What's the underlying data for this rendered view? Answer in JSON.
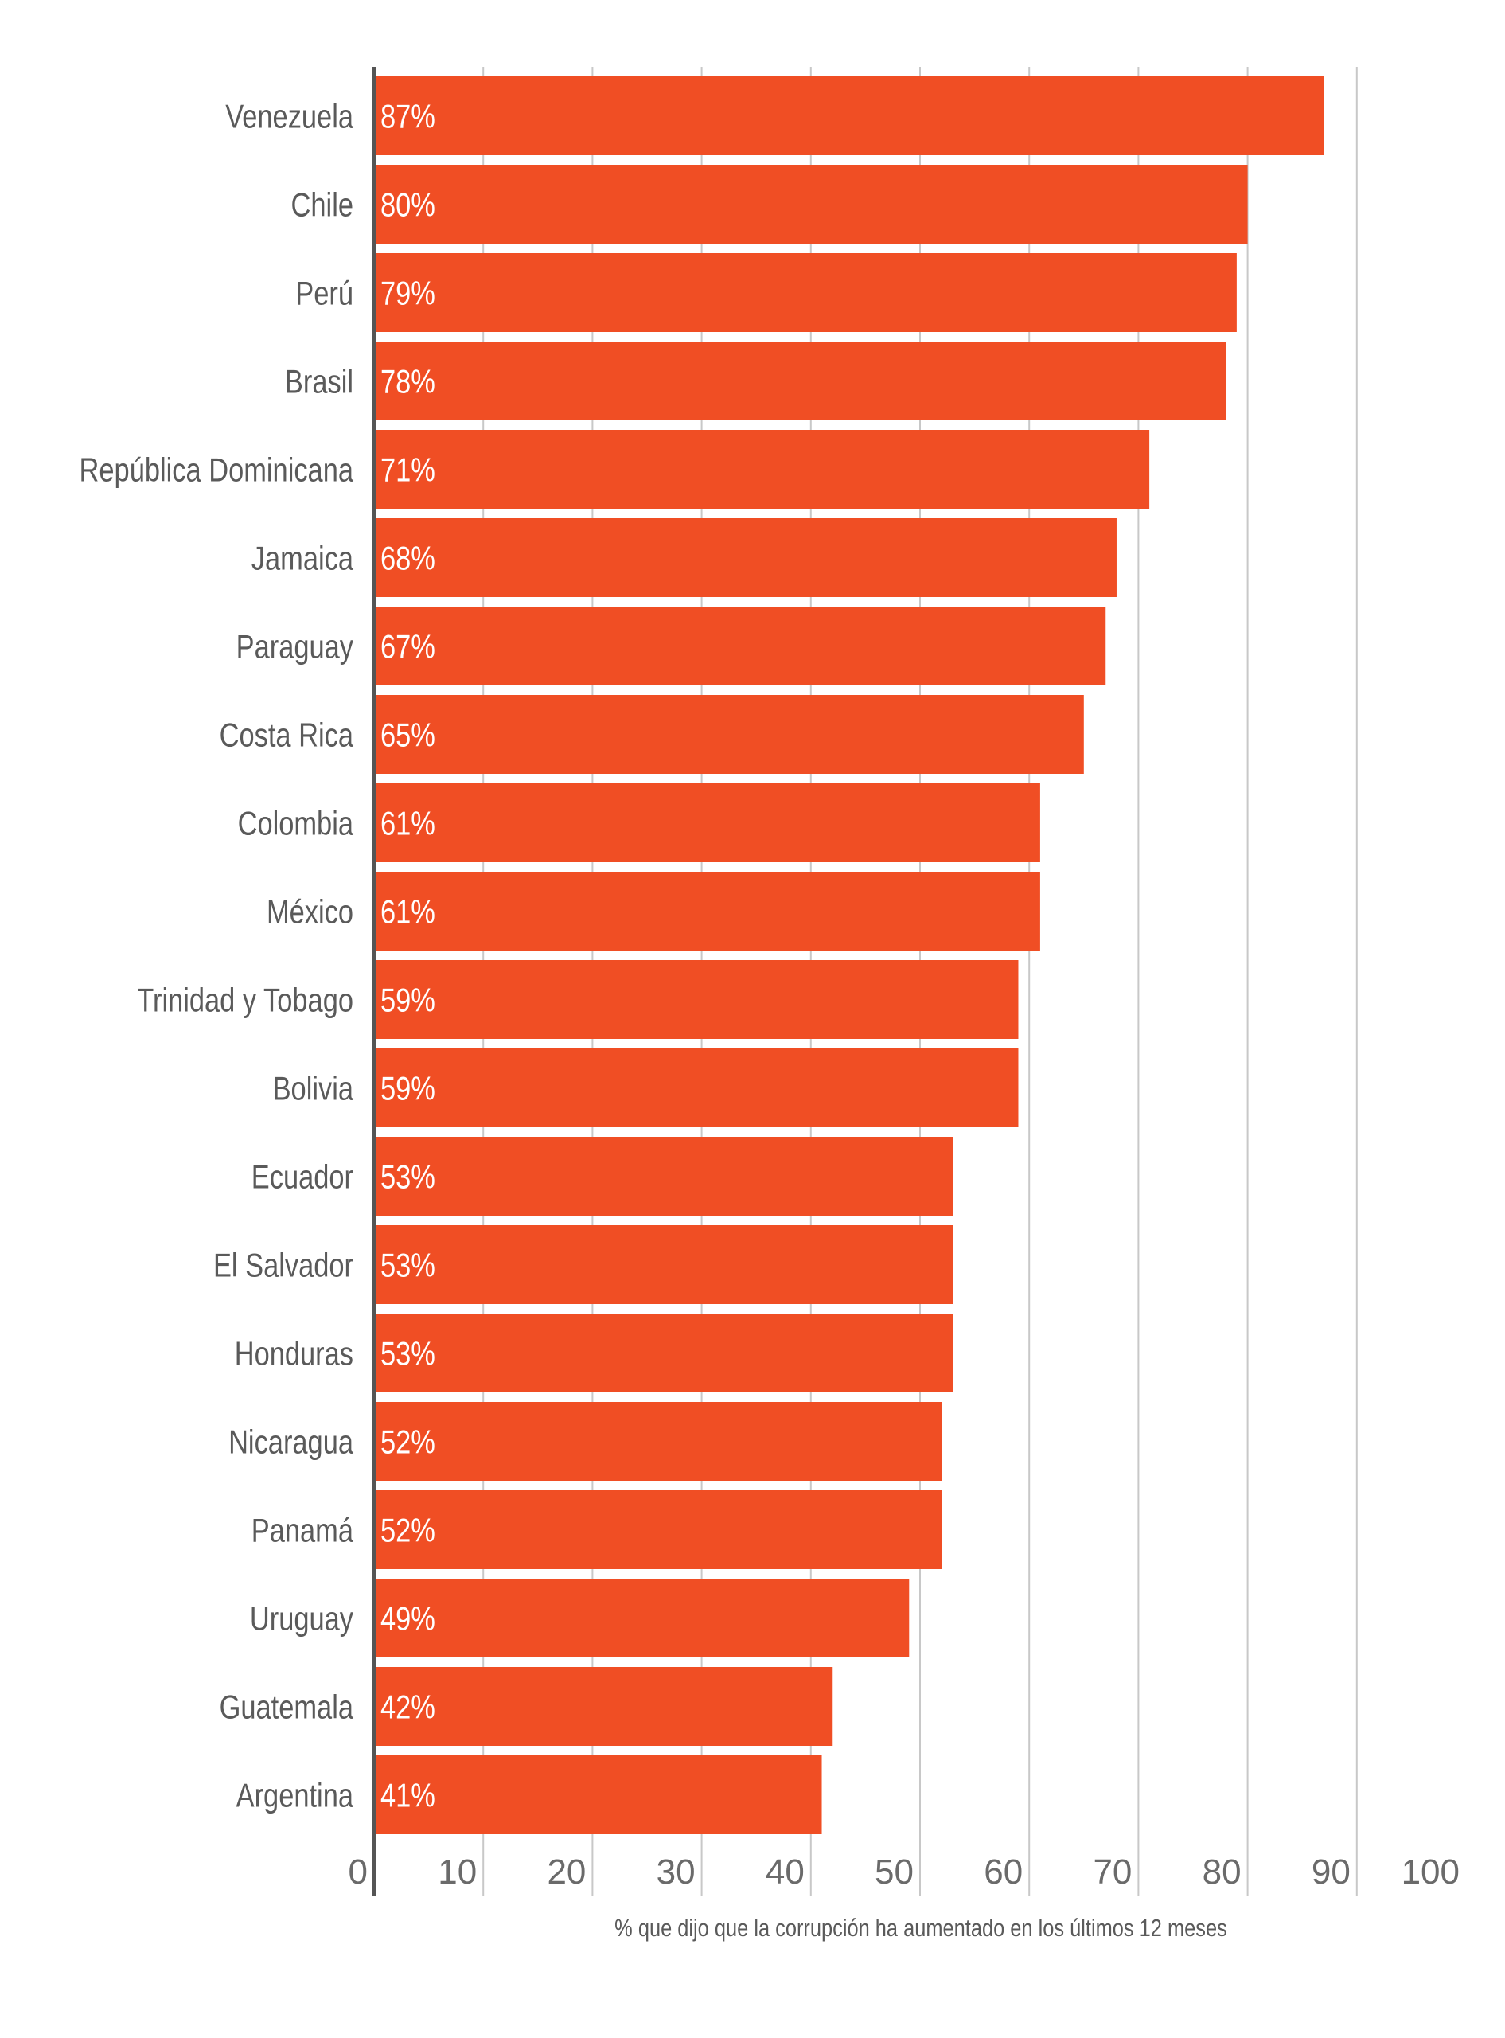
{
  "chart_data": {
    "type": "bar",
    "orientation": "horizontal",
    "title": "",
    "xlabel": "% que dijo que la corrupción ha aumentado en los últimos 12 meses",
    "ylabel": "",
    "xlim": [
      0,
      100
    ],
    "xticks": [
      0,
      10,
      20,
      30,
      40,
      50,
      60,
      70,
      80,
      90,
      100
    ],
    "grid": true,
    "bar_color": "#f04e24",
    "categories": [
      "Venezuela",
      "Chile",
      "Perú",
      "Brasil",
      "República Dominicana",
      "Jamaica",
      "Paraguay",
      "Costa Rica",
      "Colombia",
      "México",
      "Trinidad y Tobago",
      "Bolivia",
      "Ecuador",
      "El Salvador",
      "Honduras",
      "Nicaragua",
      "Panamá",
      "Uruguay",
      "Guatemala",
      "Argentina"
    ],
    "values": [
      87,
      80,
      79,
      78,
      71,
      68,
      67,
      65,
      61,
      61,
      59,
      59,
      53,
      53,
      53,
      52,
      52,
      49,
      42,
      41
    ],
    "value_labels": [
      "87%",
      "80%",
      "79%",
      "78%",
      "71%",
      "68%",
      "67%",
      "65%",
      "61%",
      "61%",
      "59%",
      "59%",
      "53%",
      "53%",
      "53%",
      "52%",
      "52%",
      "49%",
      "42%",
      "41%"
    ]
  }
}
